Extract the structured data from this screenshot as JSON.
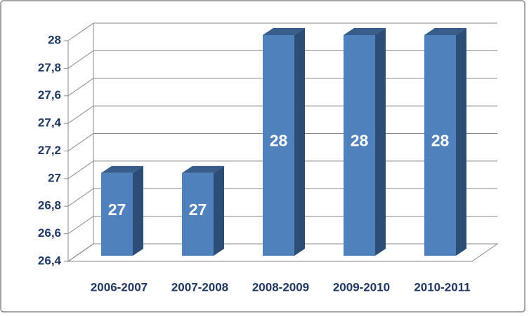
{
  "chart_data": {
    "type": "bar3d",
    "categories": [
      "2006-2007",
      "2007-2008",
      "2008-2009",
      "2009-2010",
      "2010-2011"
    ],
    "values": [
      27,
      27,
      28,
      28,
      28
    ],
    "color": "#4f81bd",
    "ylim": [
      26.4,
      28
    ],
    "yticks": [
      {
        "value": 26.4,
        "label": "26,4"
      },
      {
        "value": 26.6,
        "label": "26,6"
      },
      {
        "value": 26.8,
        "label": "26,8"
      },
      27,
      {
        "value": 27.2,
        "label": "27,2"
      },
      {
        "value": 27.4,
        "label": "27,4"
      },
      {
        "value": 27.6,
        "label": "27,6"
      },
      {
        "value": 27.8,
        "label": "27,8"
      },
      28
    ],
    "grid": true
  }
}
